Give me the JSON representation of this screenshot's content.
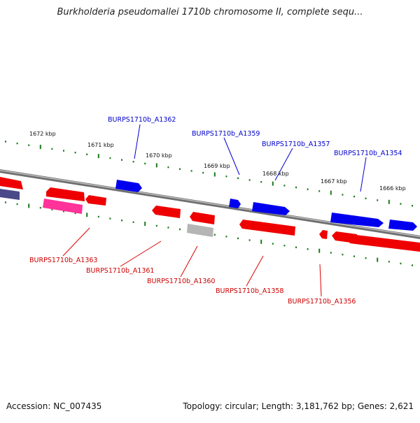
{
  "title": "Burkholderia pseudomallei 1710b chromosome II, complete sequ...",
  "footer": {
    "accession": "Accession: NC_007435",
    "topology": "Topology: circular; Length: 3,181,762 bp; Genes: 2,621"
  },
  "colors": {
    "forward_gene": "#0000ee",
    "reverse_gene": "#ee0000",
    "backbone": "#888888",
    "tick": "#1a7a1a",
    "pseudogene": "#ff3399",
    "rna": "#b0b0b0"
  },
  "kbp_ticks": [
    "1672 kbp",
    "1671 kbp",
    "1670 kbp",
    "1669 kbp",
    "1668 kbp",
    "1667 kbp",
    "1666 kbp"
  ],
  "forward_labels": [
    "BURPS1710b_A1362",
    "BURPS1710b_A1359",
    "BURPS1710b_A1357",
    "BURPS1710b_A1354"
  ],
  "reverse_labels": [
    "BURPS1710b_A1363",
    "BURPS1710b_A1361",
    "BURPS1710b_A1360",
    "BURPS1710b_A1358",
    "BURPS1710b_A1356"
  ]
}
